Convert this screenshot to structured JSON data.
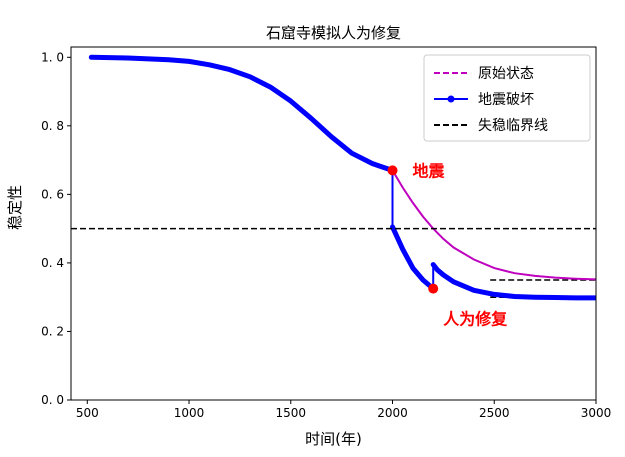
{
  "chart_data": {
    "type": "line",
    "title": "石窟寺模拟人为修复",
    "xlabel": "时间(年)",
    "ylabel": "稳定性",
    "xlim": [
      420,
      3000
    ],
    "ylim": [
      0.0,
      1.03
    ],
    "xticks": [
      500,
      1000,
      1500,
      2000,
      2500,
      3000
    ],
    "yticks": [
      0.0,
      0.2,
      0.4,
      0.6,
      0.8,
      1.0
    ],
    "ytick_labels": [
      "0. 0",
      "0. 2",
      "0. 4",
      "0. 6",
      "0. 8",
      "1. 0"
    ],
    "grid": false,
    "legend_position": "upper-right",
    "series": [
      {
        "name": "原始状态",
        "style": "dashed",
        "color": "#bf00bf",
        "x": [
          2000,
          2050,
          2100,
          2150,
          2200,
          2250,
          2300,
          2400,
          2500,
          2600,
          2700,
          2800,
          2900,
          3000
        ],
        "y": [
          0.67,
          0.62,
          0.575,
          0.535,
          0.5,
          0.47,
          0.445,
          0.41,
          0.385,
          0.37,
          0.362,
          0.357,
          0.354,
          0.352
        ]
      },
      {
        "name": "地震破坏",
        "style": "solid-marker",
        "color": "#0000ff",
        "x": [
          520,
          700,
          900,
          1000,
          1100,
          1200,
          1300,
          1400,
          1500,
          1600,
          1700,
          1800,
          1900,
          1950,
          2000,
          2000,
          2050,
          2100,
          2150,
          2200,
          2200,
          2220,
          2250,
          2300,
          2400,
          2500,
          2600,
          2700,
          2800,
          2900,
          3000
        ],
        "y": [
          1.0,
          0.998,
          0.993,
          0.988,
          0.978,
          0.964,
          0.943,
          0.913,
          0.872,
          0.822,
          0.768,
          0.72,
          0.69,
          0.68,
          0.67,
          0.505,
          0.44,
          0.385,
          0.35,
          0.325,
          0.395,
          0.38,
          0.365,
          0.345,
          0.32,
          0.308,
          0.302,
          0.3,
          0.299,
          0.298,
          0.298
        ]
      },
      {
        "name": "失稳临界线",
        "style": "dashed",
        "color": "#000000",
        "x": [
          420,
          3000
        ],
        "y": [
          0.5,
          0.5
        ]
      }
    ],
    "extra_dashed_lines": [
      {
        "x": [
          2480,
          3000
        ],
        "y": [
          0.35,
          0.35
        ]
      },
      {
        "x": [
          2480,
          3000
        ],
        "y": [
          0.3,
          0.3
        ]
      }
    ],
    "annotations": [
      {
        "text": "地震",
        "x": 2000,
        "y": 0.67,
        "color": "#ff0000"
      },
      {
        "text": "人为修复",
        "x": 2200,
        "y": 0.325,
        "color": "#ff0000"
      }
    ]
  }
}
